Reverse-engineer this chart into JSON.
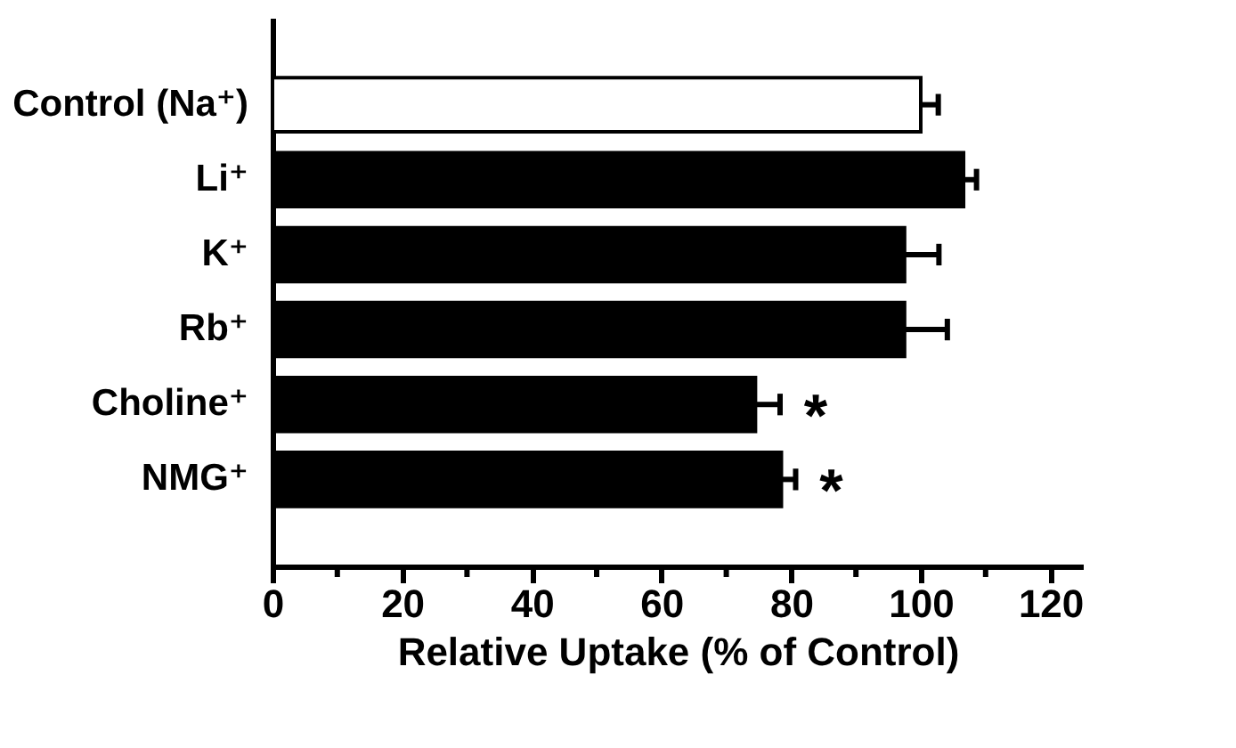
{
  "chart_data": {
    "type": "bar",
    "orientation": "horizontal",
    "xlabel": "Relative Uptake (% of Control)",
    "categories": [
      "Control (Na⁺)",
      "Li⁺",
      "K⁺",
      "Rb⁺",
      "Choline⁺",
      "NMG⁺"
    ],
    "values": [
      100,
      106.6,
      97.5,
      97.5,
      74.5,
      78.5
    ],
    "colors": [
      "#ffffff",
      "#000000",
      "#000000",
      "#000000",
      "#000000",
      "#000000"
    ],
    "errors": [
      [
        100,
        102.7
      ],
      [
        106.6,
        108.6
      ],
      [
        97.5,
        102.8
      ],
      [
        97.5,
        104.1
      ],
      [
        74.5,
        78.3
      ],
      [
        78.5,
        80.7
      ]
    ],
    "xlim": [
      0,
      125
    ],
    "xticks": [
      0,
      {
        "value": 10,
        "label": null
      },
      20,
      {
        "value": 30,
        "label": null
      },
      40,
      {
        "value": 50,
        "label": null
      },
      60,
      {
        "value": 70,
        "label": null
      },
      80,
      {
        "value": 90,
        "label": null
      },
      100,
      {
        "value": 110,
        "label": null
      },
      120
    ],
    "annotations": [
      "*",
      "*"
    ],
    "grid": false,
    "legend": false
  }
}
